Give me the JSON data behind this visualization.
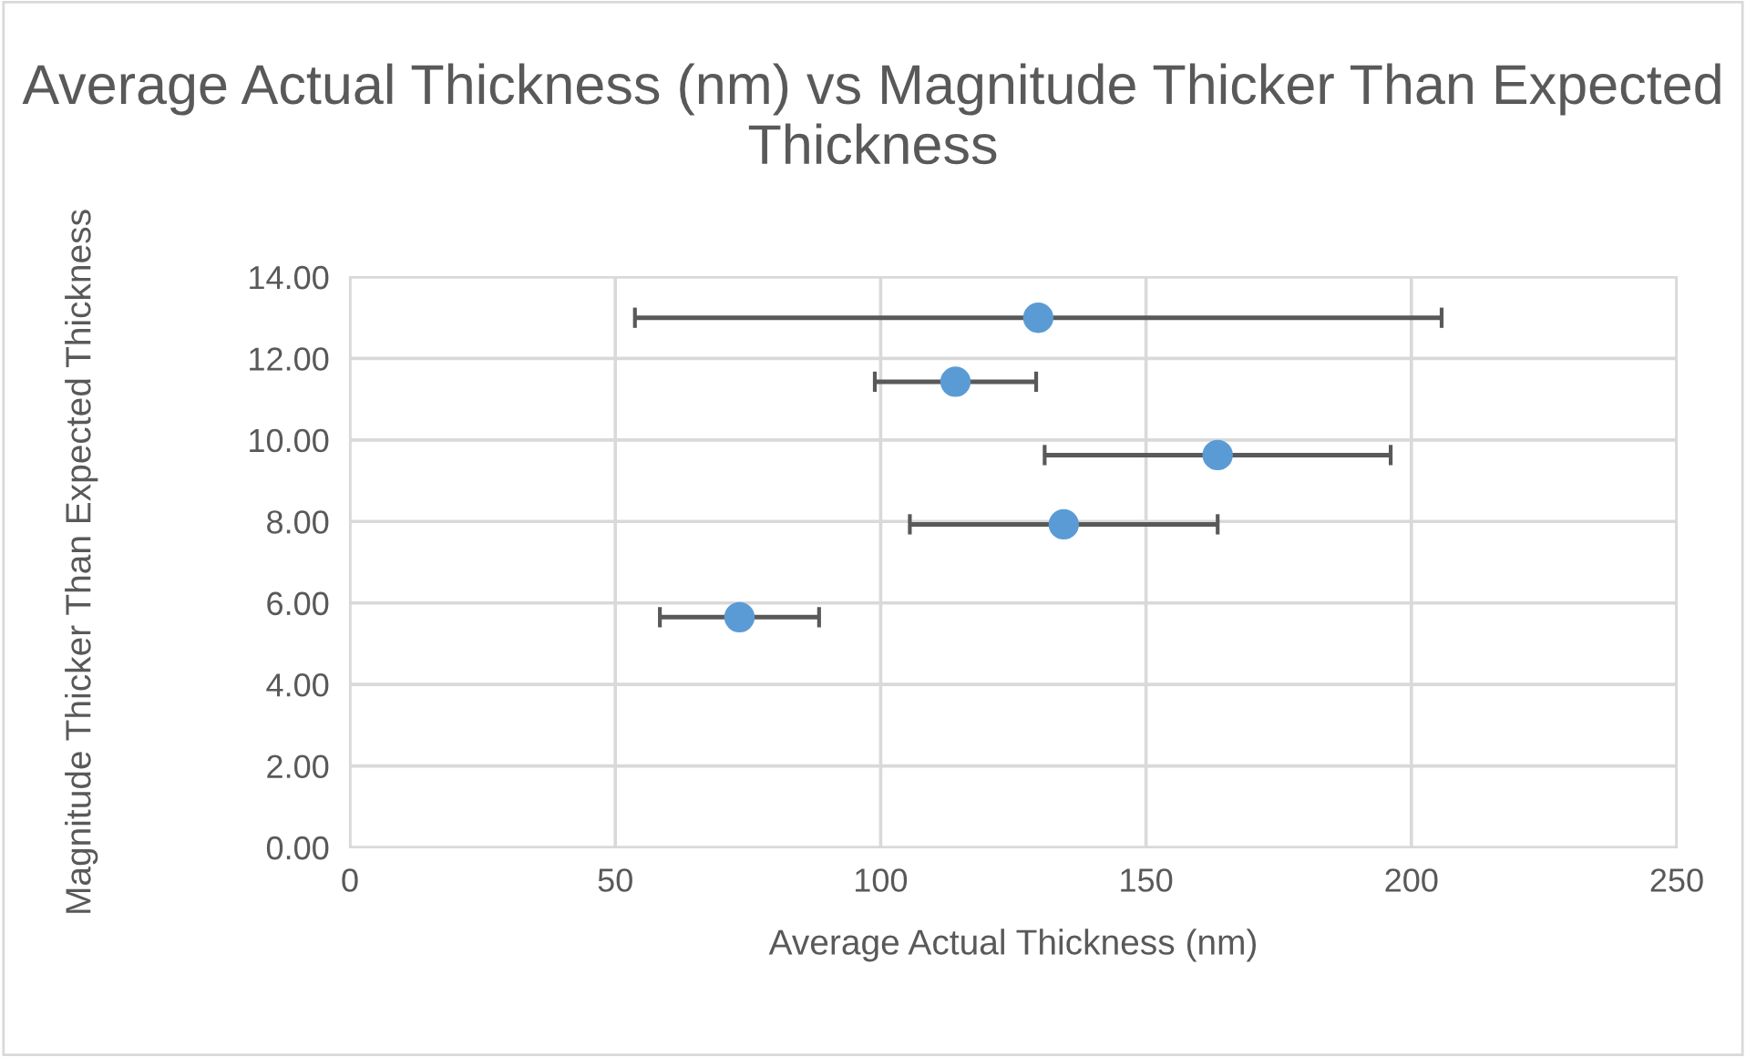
{
  "chart_data": {
    "type": "scatter",
    "title": "Average Actual Thickness (nm) vs Magnitude Thicker Than Expected Thickness",
    "xlabel": "Average Actual Thickness (nm)",
    "ylabel": "Magnitude Thicker Than Expected Thickness",
    "x": [
      129.7,
      114.1,
      163.5,
      134.5,
      73.4
    ],
    "series": [
      {
        "color": "#5b9bd5",
        "values": [
          13.0,
          11.43,
          9.63,
          7.93,
          5.65
        ],
        "xerrors": [
          76,
          15.2,
          32.6,
          29,
          15
        ]
      }
    ],
    "xlim": [
      0,
      250
    ],
    "xticks": [
      0,
      50,
      100,
      150,
      200,
      250
    ],
    "ylim": [
      0,
      14
    ],
    "yticks": [
      {
        "value": 0,
        "label": "0.00"
      },
      {
        "value": 2,
        "label": "2.00"
      },
      {
        "value": 4,
        "label": "4.00"
      },
      {
        "value": 6,
        "label": "6.00"
      },
      {
        "value": 8,
        "label": "8.00"
      },
      {
        "value": 10,
        "label": "10.00"
      },
      {
        "value": 12,
        "label": "12.00"
      },
      {
        "value": 14,
        "label": "14.00"
      }
    ],
    "grid": true,
    "marker": "circle"
  }
}
